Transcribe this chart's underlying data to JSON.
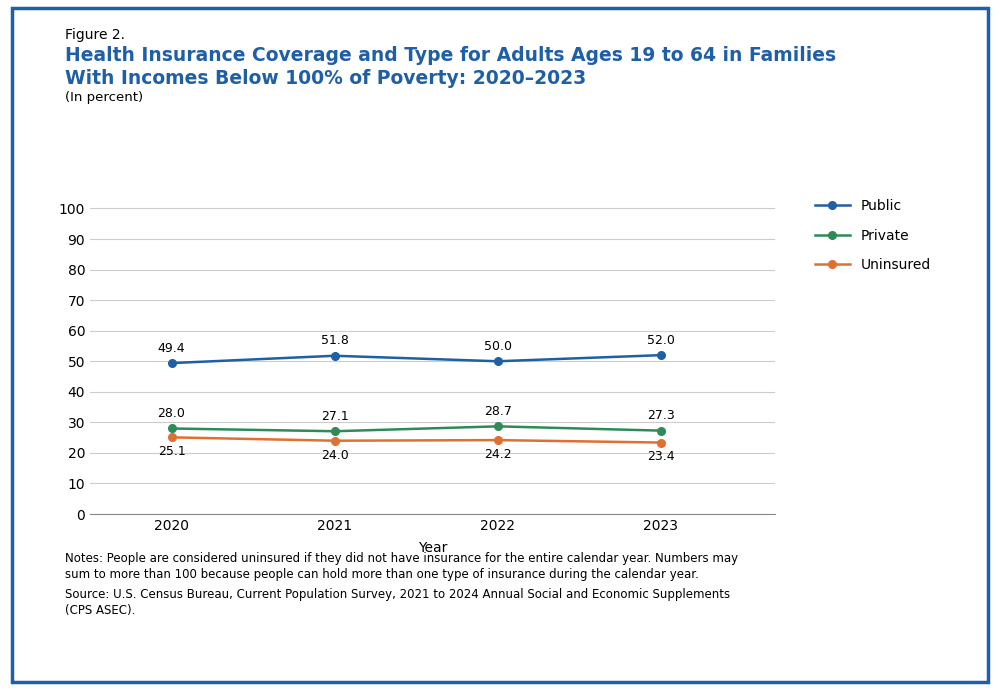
{
  "years": [
    2020,
    2021,
    2022,
    2023
  ],
  "public": [
    49.4,
    51.8,
    50.0,
    52.0
  ],
  "private": [
    28.0,
    27.1,
    28.7,
    27.3
  ],
  "uninsured": [
    25.1,
    24.0,
    24.2,
    23.4
  ],
  "public_color": "#1f5fa6",
  "private_color": "#2e8b57",
  "uninsured_color": "#e07030",
  "title_line1": "Figure 2.",
  "title_line2": "Health Insurance Coverage and Type for Adults Ages 19 to 64 in Families",
  "title_line3": "With Incomes Below 100% of Poverty: 2020–2023",
  "subtitle": "(In percent)",
  "xlabel": "Year",
  "ylim": [
    0,
    105
  ],
  "yticks": [
    0,
    10,
    20,
    30,
    40,
    50,
    60,
    70,
    80,
    90,
    100
  ],
  "legend_labels": [
    "Public",
    "Private",
    "Uninsured"
  ],
  "note_line1": "Notes: People are considered uninsured if they did not have insurance for the entire calendar year. Numbers may",
  "note_line2": "sum to more than 100 because people can hold more than one type of insurance during the calendar year.",
  "note_line3": "Source: U.S. Census Bureau, Current Population Survey, 2021 to 2024 Annual Social and Economic Supplements",
  "note_line4": "(CPS ASEC).",
  "border_color": "#1f5fa6",
  "background_color": "#ffffff",
  "grid_color": "#cccccc"
}
